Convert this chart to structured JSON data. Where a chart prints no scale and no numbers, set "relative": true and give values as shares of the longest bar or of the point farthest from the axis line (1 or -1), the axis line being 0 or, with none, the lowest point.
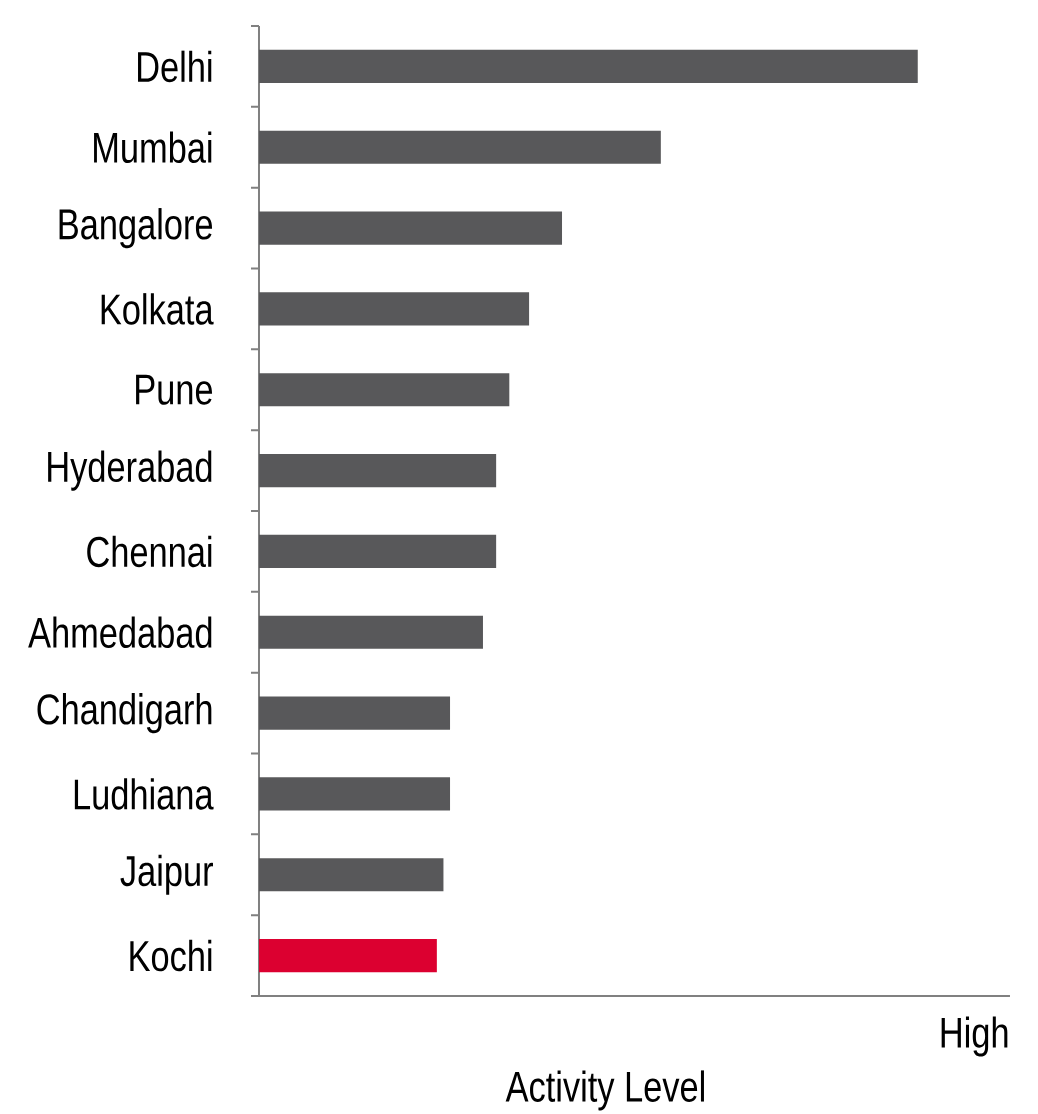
{
  "chart_data": {
    "type": "bar",
    "orientation": "horizontal",
    "relative": true,
    "categories": [
      "Delhi",
      "Mumbai",
      "Bangalore",
      "Kolkata",
      "Pune",
      "Hyderabad",
      "Chennai",
      "Ahmedabad",
      "Chandigarh",
      "Ludhiana",
      "Jaipur",
      "Kochi"
    ],
    "values": [
      1,
      0.61,
      0.46,
      0.41,
      0.38,
      0.36,
      0.36,
      0.34,
      0.29,
      0.29,
      0.28,
      0.27
    ],
    "colors": [
      "#58585a",
      "#58585a",
      "#58585a",
      "#58585a",
      "#58585a",
      "#58585a",
      "#58585a",
      "#58585a",
      "#58585a",
      "#58585a",
      "#58585a",
      "#dc0030"
    ],
    "xlabel": "Activity Level",
    "annotations": [
      "High"
    ]
  }
}
